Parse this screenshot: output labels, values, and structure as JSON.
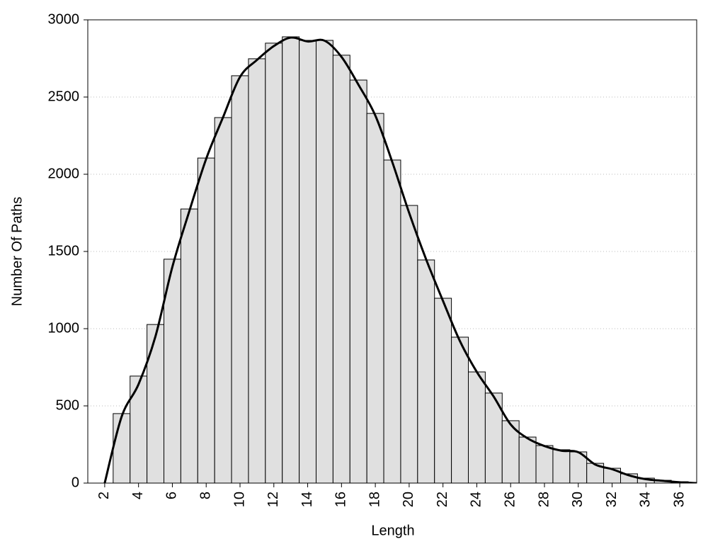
{
  "chart_data": {
    "type": "histogram",
    "x_label": "Length",
    "y_label": "Number Of Paths",
    "bins": [
      2.5,
      3.5,
      4.5,
      5.5,
      6.5,
      7.5,
      8.5,
      9.5,
      10.5,
      11.5,
      12.5,
      13.5,
      14.5,
      15.5,
      16.5,
      17.5,
      18.5,
      19.5,
      20.5,
      21.5,
      22.5,
      23.5,
      24.5,
      25.5,
      26.5,
      27.5,
      28.5,
      29.5,
      30.5,
      31.5,
      32.5,
      33.5,
      34.5,
      35.5,
      36.5
    ],
    "counts": [
      450,
      693,
      1027,
      1450,
      1775,
      2105,
      2367,
      2638,
      2748,
      2849,
      2890,
      2867,
      2867,
      2771,
      2610,
      2394,
      2092,
      1798,
      1445,
      1197,
      945,
      720,
      583,
      404,
      298,
      243,
      216,
      202,
      128,
      96,
      60,
      32,
      18,
      9
    ],
    "color": "#e0e0e0",
    "edge_color": "#000000",
    "line": {
      "x": [
        2,
        3,
        4,
        5,
        6,
        7,
        8,
        9,
        10,
        11,
        12,
        13,
        14,
        15,
        16,
        17,
        18,
        19,
        20,
        21,
        22,
        23,
        24,
        25,
        26,
        27,
        28,
        29,
        30,
        31,
        32,
        33,
        34,
        35,
        36,
        37
      ],
      "values": [
        0,
        430,
        640,
        950,
        1400,
        1760,
        2100,
        2370,
        2630,
        2740,
        2830,
        2885,
        2860,
        2865,
        2760,
        2580,
        2380,
        2080,
        1750,
        1450,
        1180,
        920,
        720,
        560,
        380,
        290,
        240,
        210,
        200,
        120,
        90,
        50,
        25,
        15,
        5,
        0
      ],
      "color": "#000000"
    },
    "xlim": [
      1,
      37
    ],
    "ylim": [
      0,
      3000
    ],
    "xticks": [
      2,
      4,
      6,
      8,
      10,
      12,
      14,
      16,
      18,
      20,
      22,
      24,
      26,
      28,
      30,
      32,
      34,
      36
    ],
    "yticks": [
      0,
      500,
      1000,
      1500,
      2000,
      2500,
      3000
    ],
    "grid": true
  }
}
